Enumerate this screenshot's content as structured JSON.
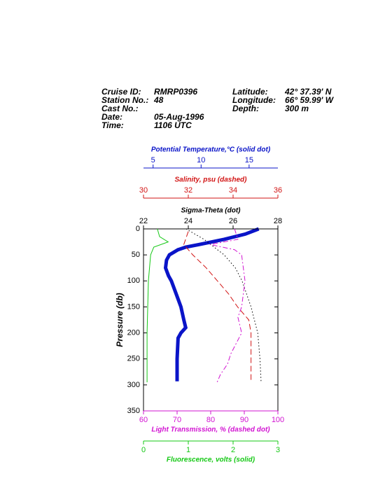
{
  "header": {
    "left": [
      [
        "Cruise ID:",
        "RMRP0396"
      ],
      [
        "Station No.:",
        "48"
      ],
      [
        "Cast No.:",
        ""
      ],
      [
        "Date:",
        "05-Aug-1996"
      ],
      [
        "Time:",
        "1106 UTC"
      ]
    ],
    "right": [
      [
        "Latitude:",
        "42° 37.39' N"
      ],
      [
        "Longitude:",
        "66° 59.99' W"
      ],
      [
        "Depth:",
        "300 m"
      ]
    ]
  },
  "chart_data": {
    "type": "profile",
    "y_label": "Pressure (db)",
    "ylim": [
      0,
      350
    ],
    "yticks": [
      0,
      50,
      100,
      150,
      200,
      250,
      300,
      350
    ],
    "axes": [
      {
        "label": "Potential Temperature,°C (solid dot)",
        "position": "top",
        "color": "#0a14c8",
        "style": "thick",
        "xlim": [
          4,
          18
        ],
        "xticks": [
          5,
          10,
          15
        ],
        "pressure": [
          0,
          10,
          20,
          30,
          35,
          40,
          50,
          60,
          75,
          90,
          100,
          120,
          150,
          175,
          190,
          200,
          210,
          250,
          293
        ],
        "values": [
          16.0,
          14.6,
          12.4,
          9.8,
          8.4,
          7.6,
          6.7,
          6.4,
          6.3,
          6.6,
          6.9,
          7.3,
          7.9,
          8.2,
          8.4,
          7.9,
          7.6,
          7.5,
          7.5
        ]
      },
      {
        "label": "Salinity, psu  (dashed)",
        "position": "top",
        "color": "#d21414",
        "style": "dashed",
        "xlim": [
          30,
          36
        ],
        "xticks": [
          30,
          32,
          34,
          36
        ],
        "pressure": [
          5,
          30,
          50,
          75,
          100,
          125,
          150,
          175,
          200,
          250,
          295
        ],
        "values": [
          32.0,
          31.8,
          32.2,
          32.8,
          33.3,
          33.8,
          34.2,
          34.7,
          34.8,
          34.8,
          34.8
        ]
      },
      {
        "label": "Sigma-Theta (dot)",
        "position": "top",
        "color": "#000000",
        "style": "dotted",
        "xlim": [
          22,
          28
        ],
        "xticks": [
          22,
          24,
          26,
          28
        ],
        "pressure": [
          0,
          20,
          40,
          50,
          75,
          100,
          150,
          200,
          250,
          295
        ],
        "values": [
          23.9,
          24.7,
          25.3,
          25.6,
          26.1,
          26.4,
          26.8,
          27.1,
          27.2,
          27.25
        ]
      },
      {
        "label": "Light Transmission, % (dashed dot)",
        "position": "bottom",
        "color": "#d214d2",
        "style": "dashdot",
        "xlim": [
          60,
          100
        ],
        "xticks": [
          60,
          70,
          80,
          90,
          100
        ],
        "pressure": [
          0,
          20,
          30,
          40,
          50,
          100,
          150,
          170,
          200,
          240,
          260,
          280,
          295
        ],
        "values": [
          87.1,
          88.1,
          79.8,
          87.1,
          89.2,
          90.2,
          89.2,
          88.1,
          89.2,
          86.0,
          85.0,
          82.9,
          81.9
        ]
      },
      {
        "label": "Fluorescence, volts (solid)",
        "position": "bottom",
        "color": "#14c814",
        "style": "solid",
        "xlim": [
          0,
          3
        ],
        "xticks": [
          0,
          1,
          2,
          3
        ],
        "pressure": [
          0,
          15,
          25,
          35,
          50,
          100,
          200,
          295
        ],
        "values": [
          0.31,
          0.36,
          0.55,
          0.23,
          0.16,
          0.11,
          0.08,
          0.08
        ]
      }
    ]
  }
}
